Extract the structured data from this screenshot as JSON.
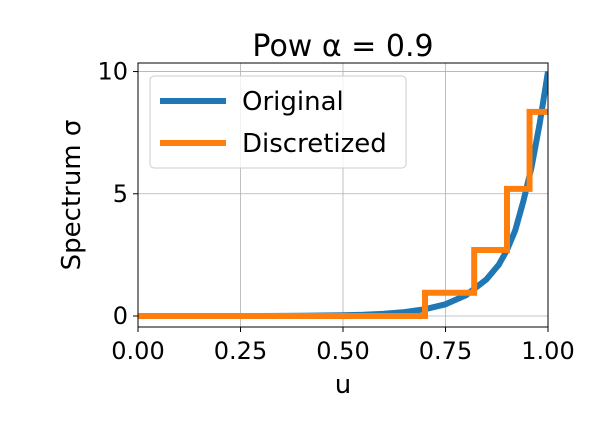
{
  "chart_data": {
    "type": "line",
    "title": "Pow α = 0.9",
    "xlabel": "u",
    "ylabel": "Spectrum σ",
    "xlim": [
      0.0,
      1.0
    ],
    "ylim": [
      -0.45,
      10.35
    ],
    "grid": true,
    "legend": {
      "placement": "top-left"
    },
    "x_ticks": [
      0.0,
      0.25,
      0.5,
      0.75,
      1.0
    ],
    "x_tick_labels": [
      "0.00",
      "0.25",
      "0.50",
      "0.75",
      "1.00"
    ],
    "y_ticks": [
      0,
      5,
      10
    ],
    "y_tick_labels": [
      "0",
      "5",
      "10"
    ],
    "series": [
      {
        "name": "Original",
        "color": "#1f77b4",
        "kind": "curve",
        "x": [
          0.0,
          0.1,
          0.2,
          0.3,
          0.4,
          0.5,
          0.55,
          0.6,
          0.65,
          0.7,
          0.75,
          0.8,
          0.85,
          0.88,
          0.9,
          0.92,
          0.94,
          0.96,
          0.98,
          1.0
        ],
        "y": [
          0.0,
          0.0,
          0.0,
          0.0,
          0.01,
          0.03,
          0.05,
          0.09,
          0.16,
          0.28,
          0.48,
          0.85,
          1.5,
          2.1,
          2.7,
          3.5,
          4.7,
          6.1,
          7.9,
          10.0
        ]
      },
      {
        "name": "Discretized",
        "color": "#ff7f0e",
        "kind": "step",
        "x": [
          0.0,
          0.7,
          0.7,
          0.82,
          0.82,
          0.9,
          0.9,
          0.955,
          0.955,
          1.0
        ],
        "y": [
          0.0,
          0.0,
          0.95,
          0.95,
          2.7,
          2.7,
          5.2,
          5.2,
          8.35,
          8.35
        ]
      }
    ]
  }
}
